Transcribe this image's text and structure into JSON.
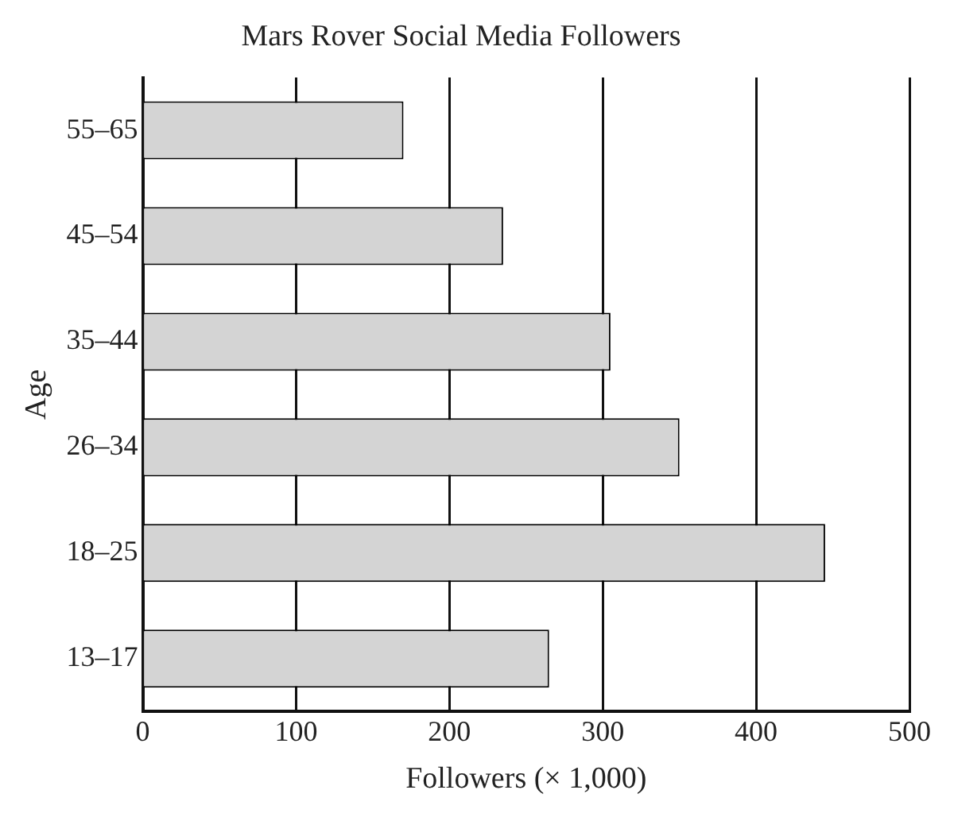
{
  "chart_data": {
    "type": "bar",
    "orientation": "horizontal",
    "title": "Mars Rover Social Media Followers",
    "xlabel": "Followers (× 1,000)",
    "ylabel": "Age",
    "categories": [
      "55–65",
      "45–54",
      "35–44",
      "26–34",
      "18–25",
      "13–17"
    ],
    "values": [
      170,
      235,
      305,
      350,
      445,
      265
    ],
    "color": "#d4d4d4",
    "xlim": [
      0,
      500
    ],
    "xticks": [
      0,
      100,
      200,
      300,
      400,
      500
    ],
    "grid": "x",
    "legend": false
  }
}
